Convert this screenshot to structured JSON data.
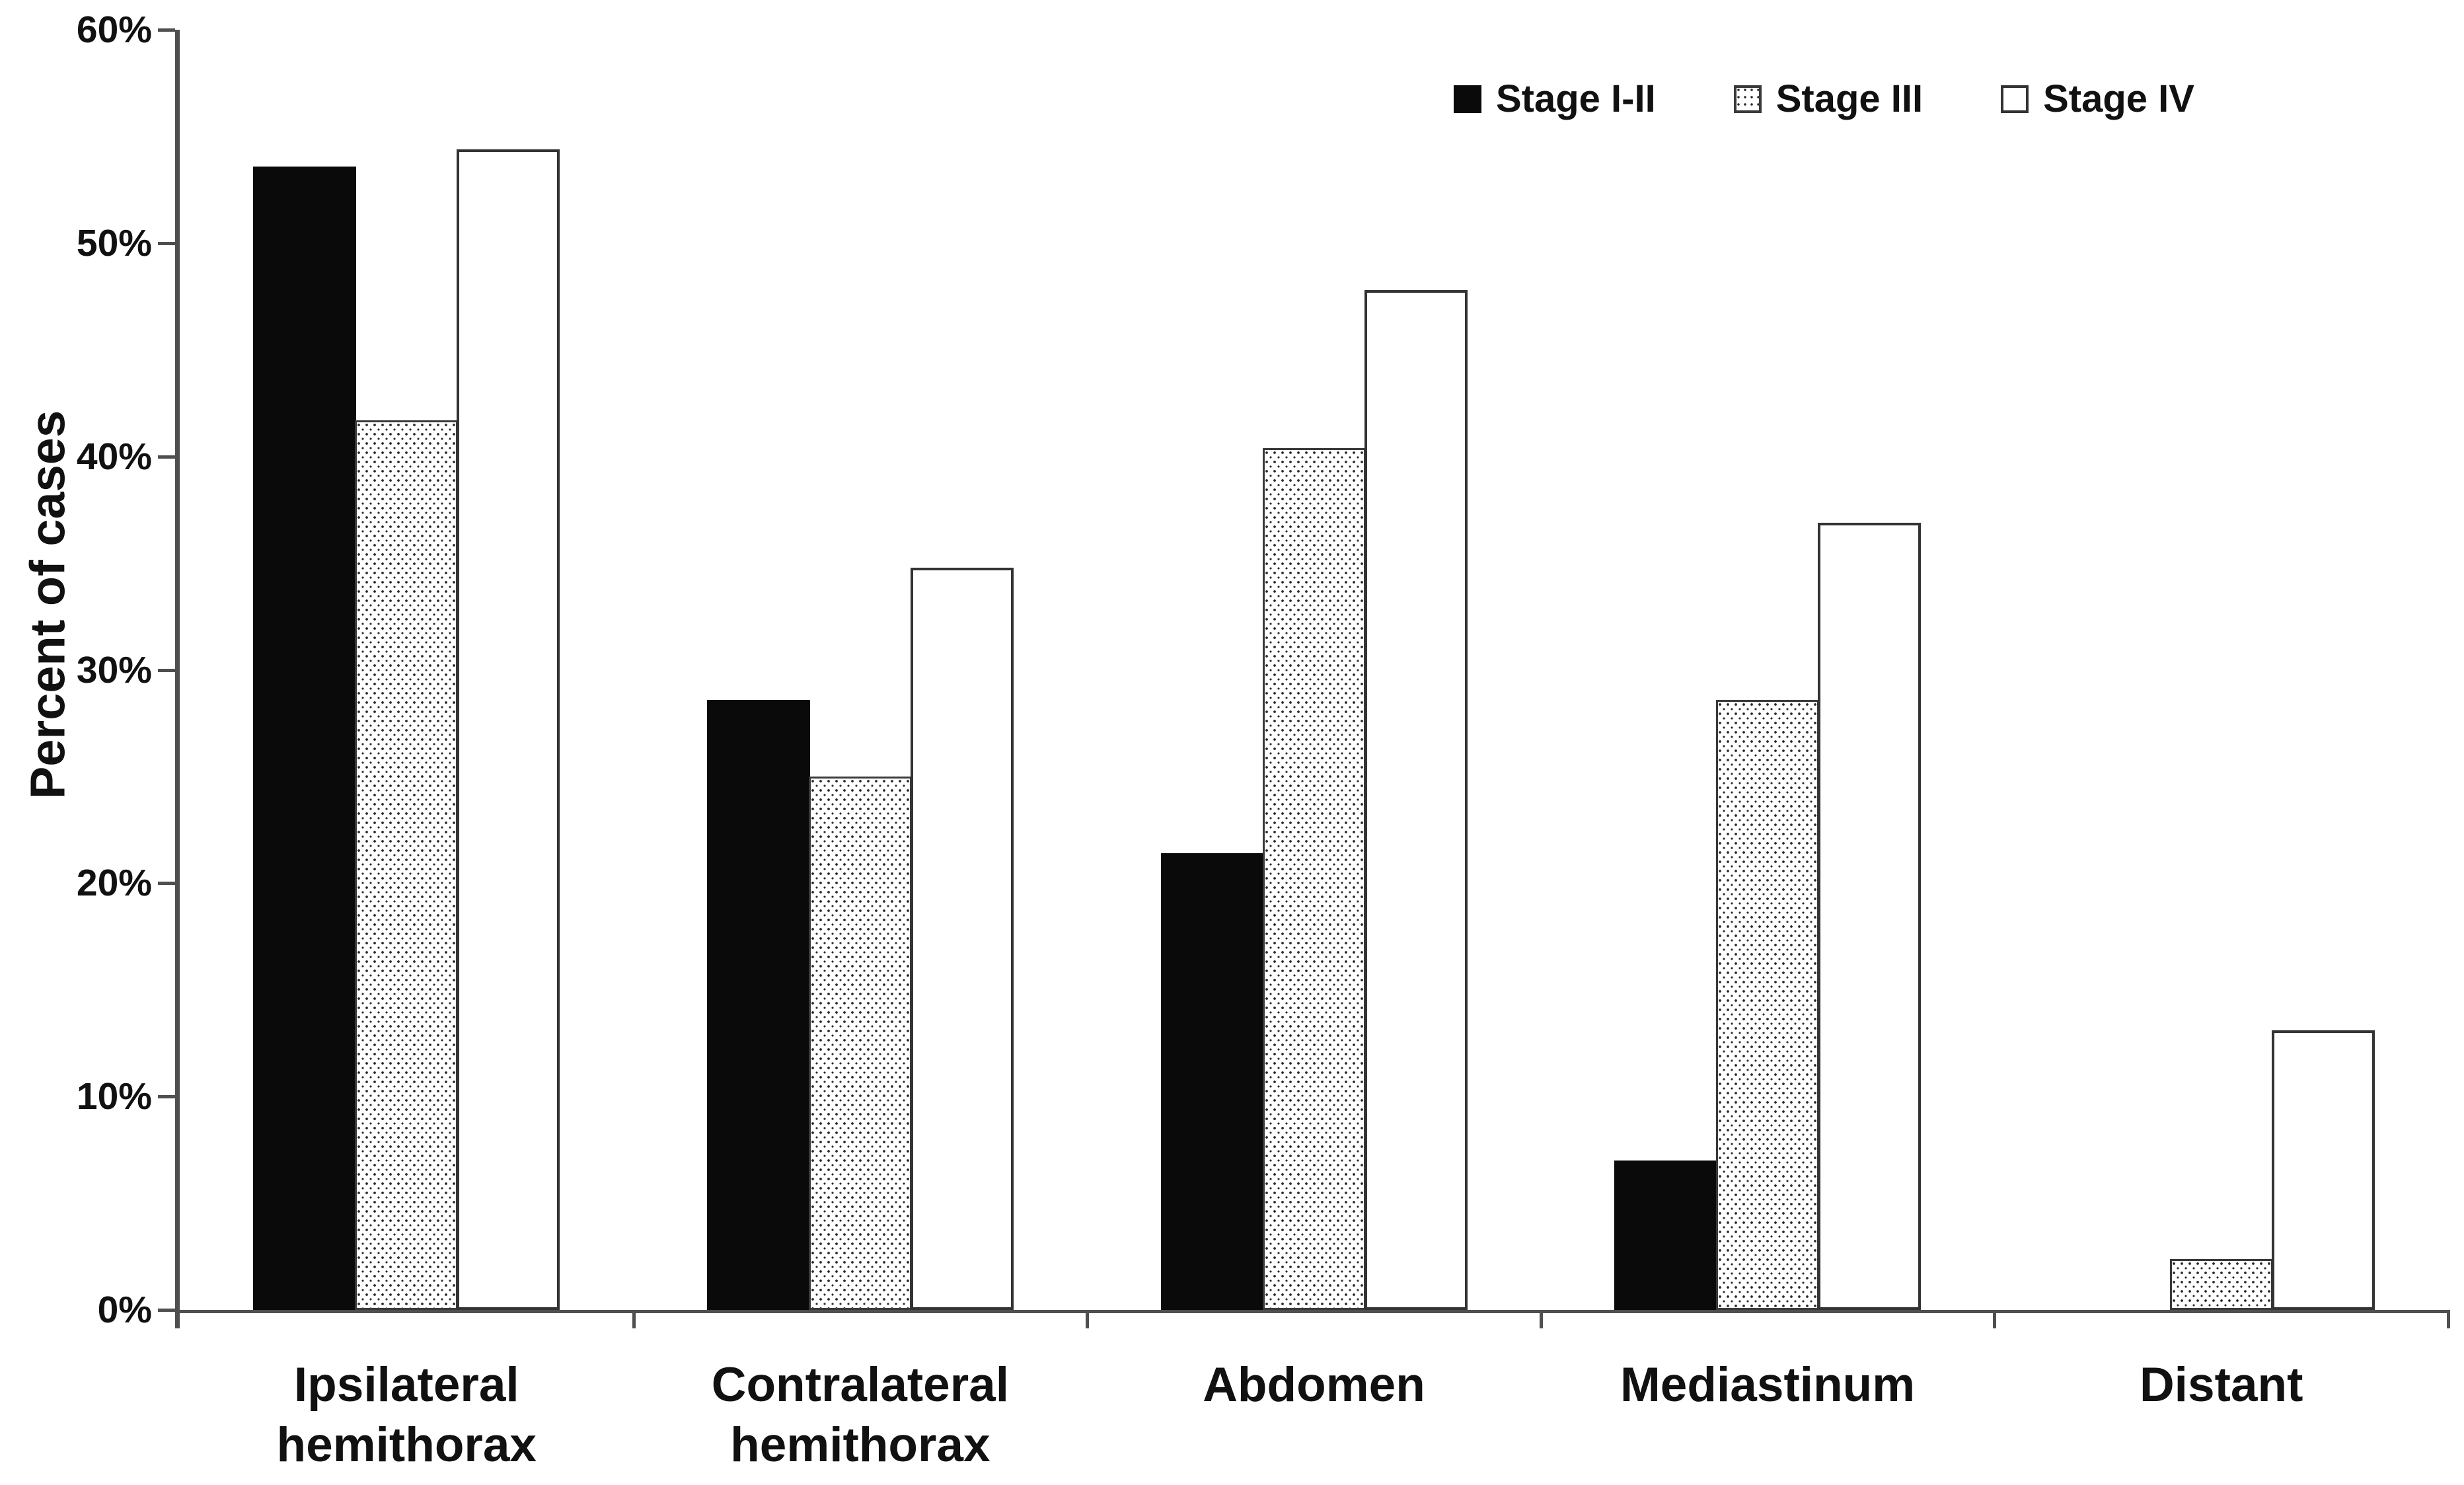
{
  "figure": {
    "background": "#ffffff",
    "text_color": "#111111",
    "axis_color": "#4f4f4f"
  },
  "chart_data": {
    "type": "bar",
    "title": "",
    "xlabel": "",
    "ylabel": "Percent of cases",
    "ylim": [
      0,
      60
    ],
    "grid": false,
    "legend_position": "top-right",
    "yticks": [
      {
        "value": 0,
        "label": "0%"
      },
      {
        "value": 10,
        "label": "10%"
      },
      {
        "value": 20,
        "label": "20%"
      },
      {
        "value": 30,
        "label": "30%"
      },
      {
        "value": 40,
        "label": "40%"
      },
      {
        "value": 50,
        "label": "50%"
      },
      {
        "value": 60,
        "label": "60%"
      }
    ],
    "categories": [
      "Ipsilateral\nhemithorax",
      "Contralateral\nhemithorax",
      "Abdomen",
      "Mediastinum",
      "Distant"
    ],
    "series": [
      {
        "name": "Stage I-II",
        "style": "solid-black",
        "color": "#0a0a0a",
        "values": [
          53.6,
          28.6,
          21.4,
          7.0,
          0
        ]
      },
      {
        "name": "Stage III",
        "style": "stipple",
        "color": "#ffffff",
        "values": [
          41.7,
          25.0,
          40.4,
          28.6,
          2.4
        ]
      },
      {
        "name": "Stage IV",
        "style": "white-outline",
        "color": "#ffffff",
        "values": [
          54.4,
          34.8,
          47.8,
          36.9,
          13.1
        ]
      }
    ]
  }
}
